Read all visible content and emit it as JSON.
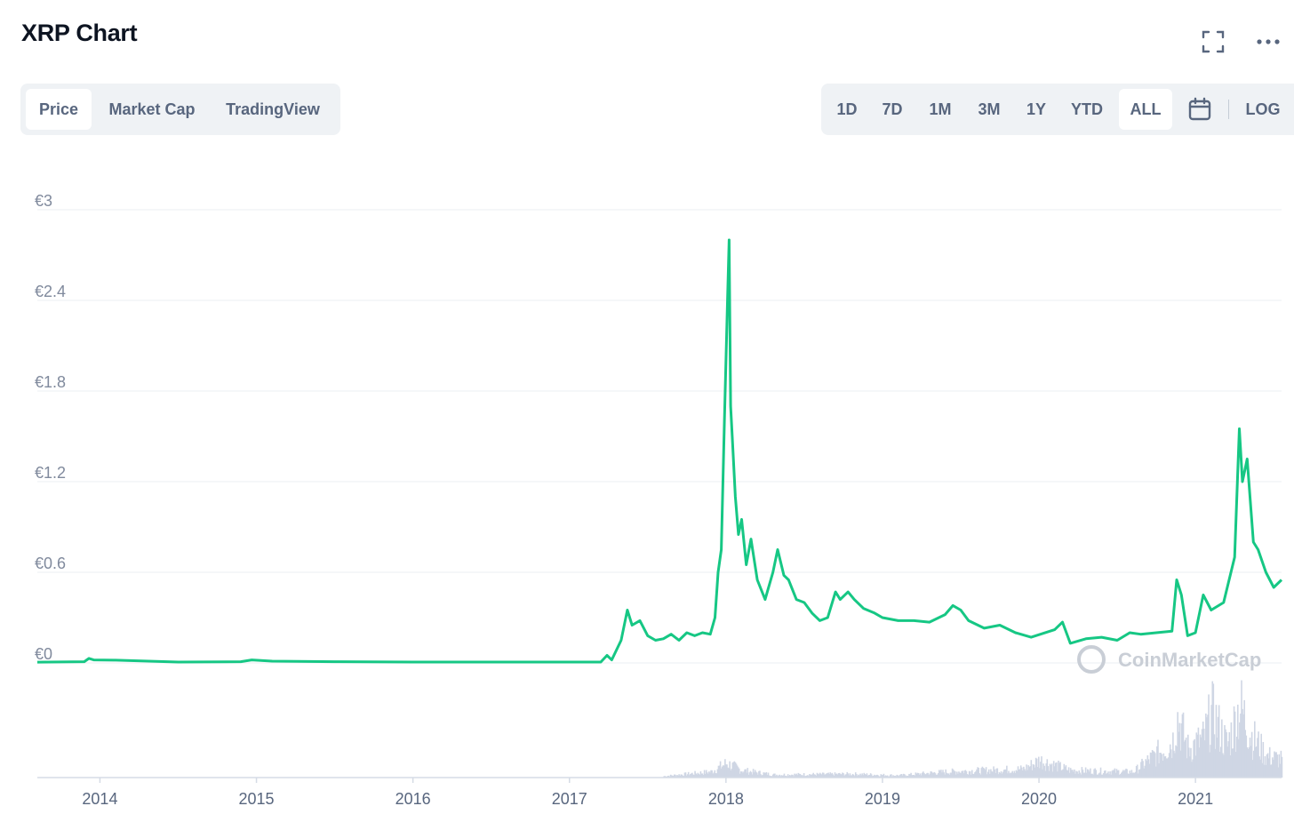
{
  "header": {
    "title": "XRP Chart",
    "icons": [
      "fullscreen-icon",
      "more-options-icon"
    ]
  },
  "tabs_left": [
    {
      "label": "Price",
      "active": true
    },
    {
      "label": "Market Cap",
      "active": false
    },
    {
      "label": "TradingView",
      "active": false
    }
  ],
  "tabs_right": [
    {
      "label": "1D",
      "active": false
    },
    {
      "label": "7D",
      "active": false
    },
    {
      "label": "1M",
      "active": false
    },
    {
      "label": "3M",
      "active": false
    },
    {
      "label": "1Y",
      "active": false
    },
    {
      "label": "YTD",
      "active": false
    },
    {
      "label": "ALL",
      "active": true
    }
  ],
  "log_label": "LOG",
  "calendar_icon": "calendar-icon",
  "watermark": "CoinMarketCap",
  "colors": {
    "line": "#16c784",
    "volume": "#cfd6e4",
    "grid": "#eff2f5",
    "tab_bg": "#eff2f5",
    "text_muted": "#808a9d"
  },
  "chart_data": {
    "type": "line",
    "title": "",
    "xlabel": "",
    "ylabel": "",
    "currency": "€",
    "y_ticks": [
      "€0",
      "€0.6",
      "€1.2",
      "€1.8",
      "€2.4",
      "€3"
    ],
    "ylim": [
      0,
      3
    ],
    "x_ticks": [
      "2014",
      "2015",
      "2016",
      "2017",
      "2018",
      "2019",
      "2020",
      "2021"
    ],
    "xlim": [
      2013.6,
      2021.55
    ],
    "grid": true,
    "series": [
      {
        "values": [
          [
            2013.6,
            0.005
          ],
          [
            2013.9,
            0.008
          ],
          [
            2013.93,
            0.03
          ],
          [
            2013.96,
            0.02
          ],
          [
            2014.1,
            0.018
          ],
          [
            2014.5,
            0.006
          ],
          [
            2014.9,
            0.008
          ],
          [
            2014.97,
            0.02
          ],
          [
            2015.1,
            0.012
          ],
          [
            2015.5,
            0.008
          ],
          [
            2016.0,
            0.006
          ],
          [
            2016.5,
            0.006
          ],
          [
            2017.0,
            0.006
          ],
          [
            2017.2,
            0.006
          ],
          [
            2017.24,
            0.05
          ],
          [
            2017.27,
            0.02
          ],
          [
            2017.33,
            0.15
          ],
          [
            2017.37,
            0.35
          ],
          [
            2017.4,
            0.25
          ],
          [
            2017.45,
            0.28
          ],
          [
            2017.5,
            0.18
          ],
          [
            2017.55,
            0.15
          ],
          [
            2017.6,
            0.16
          ],
          [
            2017.65,
            0.19
          ],
          [
            2017.7,
            0.15
          ],
          [
            2017.75,
            0.2
          ],
          [
            2017.8,
            0.18
          ],
          [
            2017.85,
            0.2
          ],
          [
            2017.9,
            0.19
          ],
          [
            2017.93,
            0.3
          ],
          [
            2017.95,
            0.6
          ],
          [
            2017.97,
            0.75
          ],
          [
            2017.99,
            1.6
          ],
          [
            2018.01,
            2.4
          ],
          [
            2018.02,
            2.8
          ],
          [
            2018.03,
            1.7
          ],
          [
            2018.04,
            1.5
          ],
          [
            2018.06,
            1.1
          ],
          [
            2018.08,
            0.85
          ],
          [
            2018.1,
            0.95
          ],
          [
            2018.13,
            0.65
          ],
          [
            2018.16,
            0.82
          ],
          [
            2018.2,
            0.55
          ],
          [
            2018.25,
            0.42
          ],
          [
            2018.3,
            0.6
          ],
          [
            2018.33,
            0.75
          ],
          [
            2018.37,
            0.58
          ],
          [
            2018.4,
            0.55
          ],
          [
            2018.45,
            0.42
          ],
          [
            2018.5,
            0.4
          ],
          [
            2018.55,
            0.33
          ],
          [
            2018.6,
            0.28
          ],
          [
            2018.65,
            0.3
          ],
          [
            2018.7,
            0.47
          ],
          [
            2018.73,
            0.42
          ],
          [
            2018.78,
            0.47
          ],
          [
            2018.82,
            0.42
          ],
          [
            2018.88,
            0.36
          ],
          [
            2018.95,
            0.33
          ],
          [
            2019.0,
            0.3
          ],
          [
            2019.1,
            0.28
          ],
          [
            2019.2,
            0.28
          ],
          [
            2019.3,
            0.27
          ],
          [
            2019.4,
            0.32
          ],
          [
            2019.45,
            0.38
          ],
          [
            2019.5,
            0.35
          ],
          [
            2019.55,
            0.28
          ],
          [
            2019.65,
            0.23
          ],
          [
            2019.75,
            0.25
          ],
          [
            2019.85,
            0.2
          ],
          [
            2019.95,
            0.17
          ],
          [
            2020.1,
            0.22
          ],
          [
            2020.15,
            0.27
          ],
          [
            2020.2,
            0.13
          ],
          [
            2020.3,
            0.16
          ],
          [
            2020.4,
            0.17
          ],
          [
            2020.5,
            0.15
          ],
          [
            2020.58,
            0.2
          ],
          [
            2020.65,
            0.19
          ],
          [
            2020.75,
            0.2
          ],
          [
            2020.85,
            0.21
          ],
          [
            2020.88,
            0.55
          ],
          [
            2020.91,
            0.45
          ],
          [
            2020.95,
            0.18
          ],
          [
            2021.0,
            0.2
          ],
          [
            2021.05,
            0.45
          ],
          [
            2021.1,
            0.35
          ],
          [
            2021.18,
            0.4
          ],
          [
            2021.25,
            0.7
          ],
          [
            2021.28,
            1.55
          ],
          [
            2021.3,
            1.2
          ],
          [
            2021.33,
            1.35
          ],
          [
            2021.37,
            0.8
          ],
          [
            2021.4,
            0.75
          ],
          [
            2021.45,
            0.6
          ],
          [
            2021.5,
            0.5
          ],
          [
            2021.55,
            0.55
          ]
        ]
      }
    ],
    "volume": {
      "values": [
        [
          2017.6,
          0.02
        ],
        [
          2017.9,
          0.08
        ],
        [
          2018.0,
          0.2
        ],
        [
          2018.1,
          0.1
        ],
        [
          2018.3,
          0.04
        ],
        [
          2018.8,
          0.05
        ],
        [
          2019.1,
          0.03
        ],
        [
          2019.4,
          0.08
        ],
        [
          2019.9,
          0.12
        ],
        [
          2020.0,
          0.24
        ],
        [
          2020.2,
          0.1
        ],
        [
          2020.6,
          0.08
        ],
        [
          2020.85,
          0.5
        ],
        [
          2020.88,
          0.85
        ],
        [
          2020.95,
          0.4
        ],
        [
          2021.05,
          0.55
        ],
        [
          2021.1,
          0.9
        ],
        [
          2021.2,
          0.45
        ],
        [
          2021.28,
          1.0
        ],
        [
          2021.35,
          0.6
        ],
        [
          2021.45,
          0.3
        ],
        [
          2021.55,
          0.25
        ]
      ]
    }
  }
}
